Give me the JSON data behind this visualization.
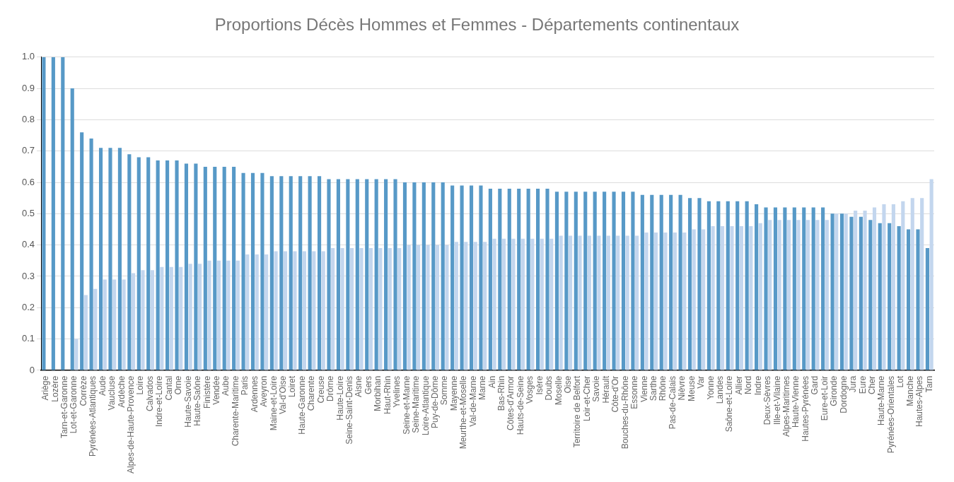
{
  "chart_data": {
    "type": "bar",
    "title": "Proportions Décès Hommes et Femmes - Départements continentaux",
    "categories": [
      "Ariège",
      "Lozère",
      "Tarn-et-Garonne",
      "Lot-et-Garonne",
      "Corrèze",
      "Pyrénées-Atlantiques",
      "Aude",
      "Vaucluse",
      "Ardèche",
      "Alpes-de-Haute-Provence",
      "Loire",
      "Calvados",
      "Indre-et-Loire",
      "Cantal",
      "Orne",
      "Haute-Savoie",
      "Haute-Saône",
      "Finistère",
      "Vendée",
      "Aube",
      "Charente-Maritime",
      "Paris",
      "Ardennes",
      "Aveyron",
      "Maine-et-Loire",
      "Val-d'Oise",
      "Loiret",
      "Haute-Garonne",
      "Charente",
      "Creuse",
      "Drôme",
      "Haute-Loire",
      "Seine-Saint-Denis",
      "Aisne",
      "Gers",
      "Morbihan",
      "Haut-Rhin",
      "Yvelines",
      "Seine-et-Marne",
      "Seine-Maritime",
      "Loire-Atlantique",
      "Puy-de-Dôme",
      "Somme",
      "Mayenne",
      "Meurthe-et-Moselle",
      "Val-de-Marne",
      "Marne",
      "Ain",
      "Bas-Rhin",
      "Côtes-d'Armor",
      "Hauts-de-Seine",
      "Vosges",
      "Isère",
      "Doubs",
      "Moselle",
      "Oise",
      "Territoire de Belfort",
      "Loir-et-Cher",
      "Savoie",
      "Hérault",
      "Côte-d'Or",
      "Bouches-du-Rhône",
      "Essonne",
      "Vienne",
      "Sarthe",
      "Rhône",
      "Pas-de-Calais",
      "Nièvre",
      "Meuse",
      "Var",
      "Yonne",
      "Landes",
      "Saône-et-Loire",
      "Allier",
      "Nord",
      "Indre",
      "Deux-Sèvres",
      "Ille-et-Vilaine",
      "Alpes-Maritimes",
      "Haute-Vienne",
      "Hautes-Pyrénées",
      "Gard",
      "Eure-et-Loir",
      "Gironde",
      "Dordogne",
      "Jura",
      "Eure",
      "Cher",
      "Haute-Marne",
      "Pyrénées-Orientales",
      "Lot",
      "Manche",
      "Hautes-Alpes",
      "Tarn"
    ],
    "series": [
      {
        "color": "#5799c7",
        "values": [
          1,
          1,
          1,
          0.9,
          0.76,
          0.74,
          0.71,
          0.71,
          0.71,
          0.69,
          0.68,
          0.68,
          0.67,
          0.67,
          0.67,
          0.66,
          0.66,
          0.65,
          0.65,
          0.65,
          0.65,
          0.63,
          0.63,
          0.63,
          0.62,
          0.62,
          0.62,
          0.62,
          0.62,
          0.62,
          0.61,
          0.61,
          0.61,
          0.61,
          0.61,
          0.61,
          0.61,
          0.61,
          0.6,
          0.6,
          0.6,
          0.6,
          0.6,
          0.59,
          0.59,
          0.59,
          0.59,
          0.58,
          0.58,
          0.58,
          0.58,
          0.58,
          0.58,
          0.58,
          0.57,
          0.57,
          0.57,
          0.57,
          0.57,
          0.57,
          0.57,
          0.57,
          0.57,
          0.56,
          0.56,
          0.56,
          0.56,
          0.56,
          0.55,
          0.55,
          0.54,
          0.54,
          0.54,
          0.54,
          0.54,
          0.53,
          0.52,
          0.52,
          0.52,
          0.52,
          0.52,
          0.52,
          0.52,
          0.5,
          0.5,
          0.49,
          0.49,
          0.48,
          0.47,
          0.47,
          0.46,
          0.45,
          0.45,
          0.39
        ]
      },
      {
        "color": "#c3d6ee",
        "values": [
          0,
          0,
          0,
          0.1,
          0.24,
          0.26,
          0.29,
          0.29,
          0.29,
          0.31,
          0.32,
          0.32,
          0.33,
          0.33,
          0.33,
          0.34,
          0.34,
          0.35,
          0.35,
          0.35,
          0.35,
          0.37,
          0.37,
          0.37,
          0.38,
          0.38,
          0.38,
          0.38,
          0.38,
          0.38,
          0.39,
          0.39,
          0.39,
          0.39,
          0.39,
          0.39,
          0.39,
          0.39,
          0.4,
          0.4,
          0.4,
          0.4,
          0.4,
          0.41,
          0.41,
          0.41,
          0.41,
          0.42,
          0.42,
          0.42,
          0.42,
          0.42,
          0.42,
          0.42,
          0.43,
          0.43,
          0.43,
          0.43,
          0.43,
          0.43,
          0.43,
          0.43,
          0.43,
          0.44,
          0.44,
          0.44,
          0.44,
          0.44,
          0.45,
          0.45,
          0.46,
          0.46,
          0.46,
          0.46,
          0.46,
          0.47,
          0.48,
          0.48,
          0.48,
          0.48,
          0.48,
          0.48,
          0.48,
          0.5,
          0.5,
          0.51,
          0.51,
          0.52,
          0.53,
          0.53,
          0.54,
          0.55,
          0.55,
          0.61
        ]
      }
    ],
    "ylim": [
      0,
      1
    ],
    "yticks": [
      0,
      0.1,
      0.2,
      0.3,
      0.4,
      0.5,
      0.6,
      0.7,
      0.8,
      0.9,
      {
        "value": 1,
        "label": "1.0"
      }
    ],
    "grid": "y",
    "legend": false
  }
}
